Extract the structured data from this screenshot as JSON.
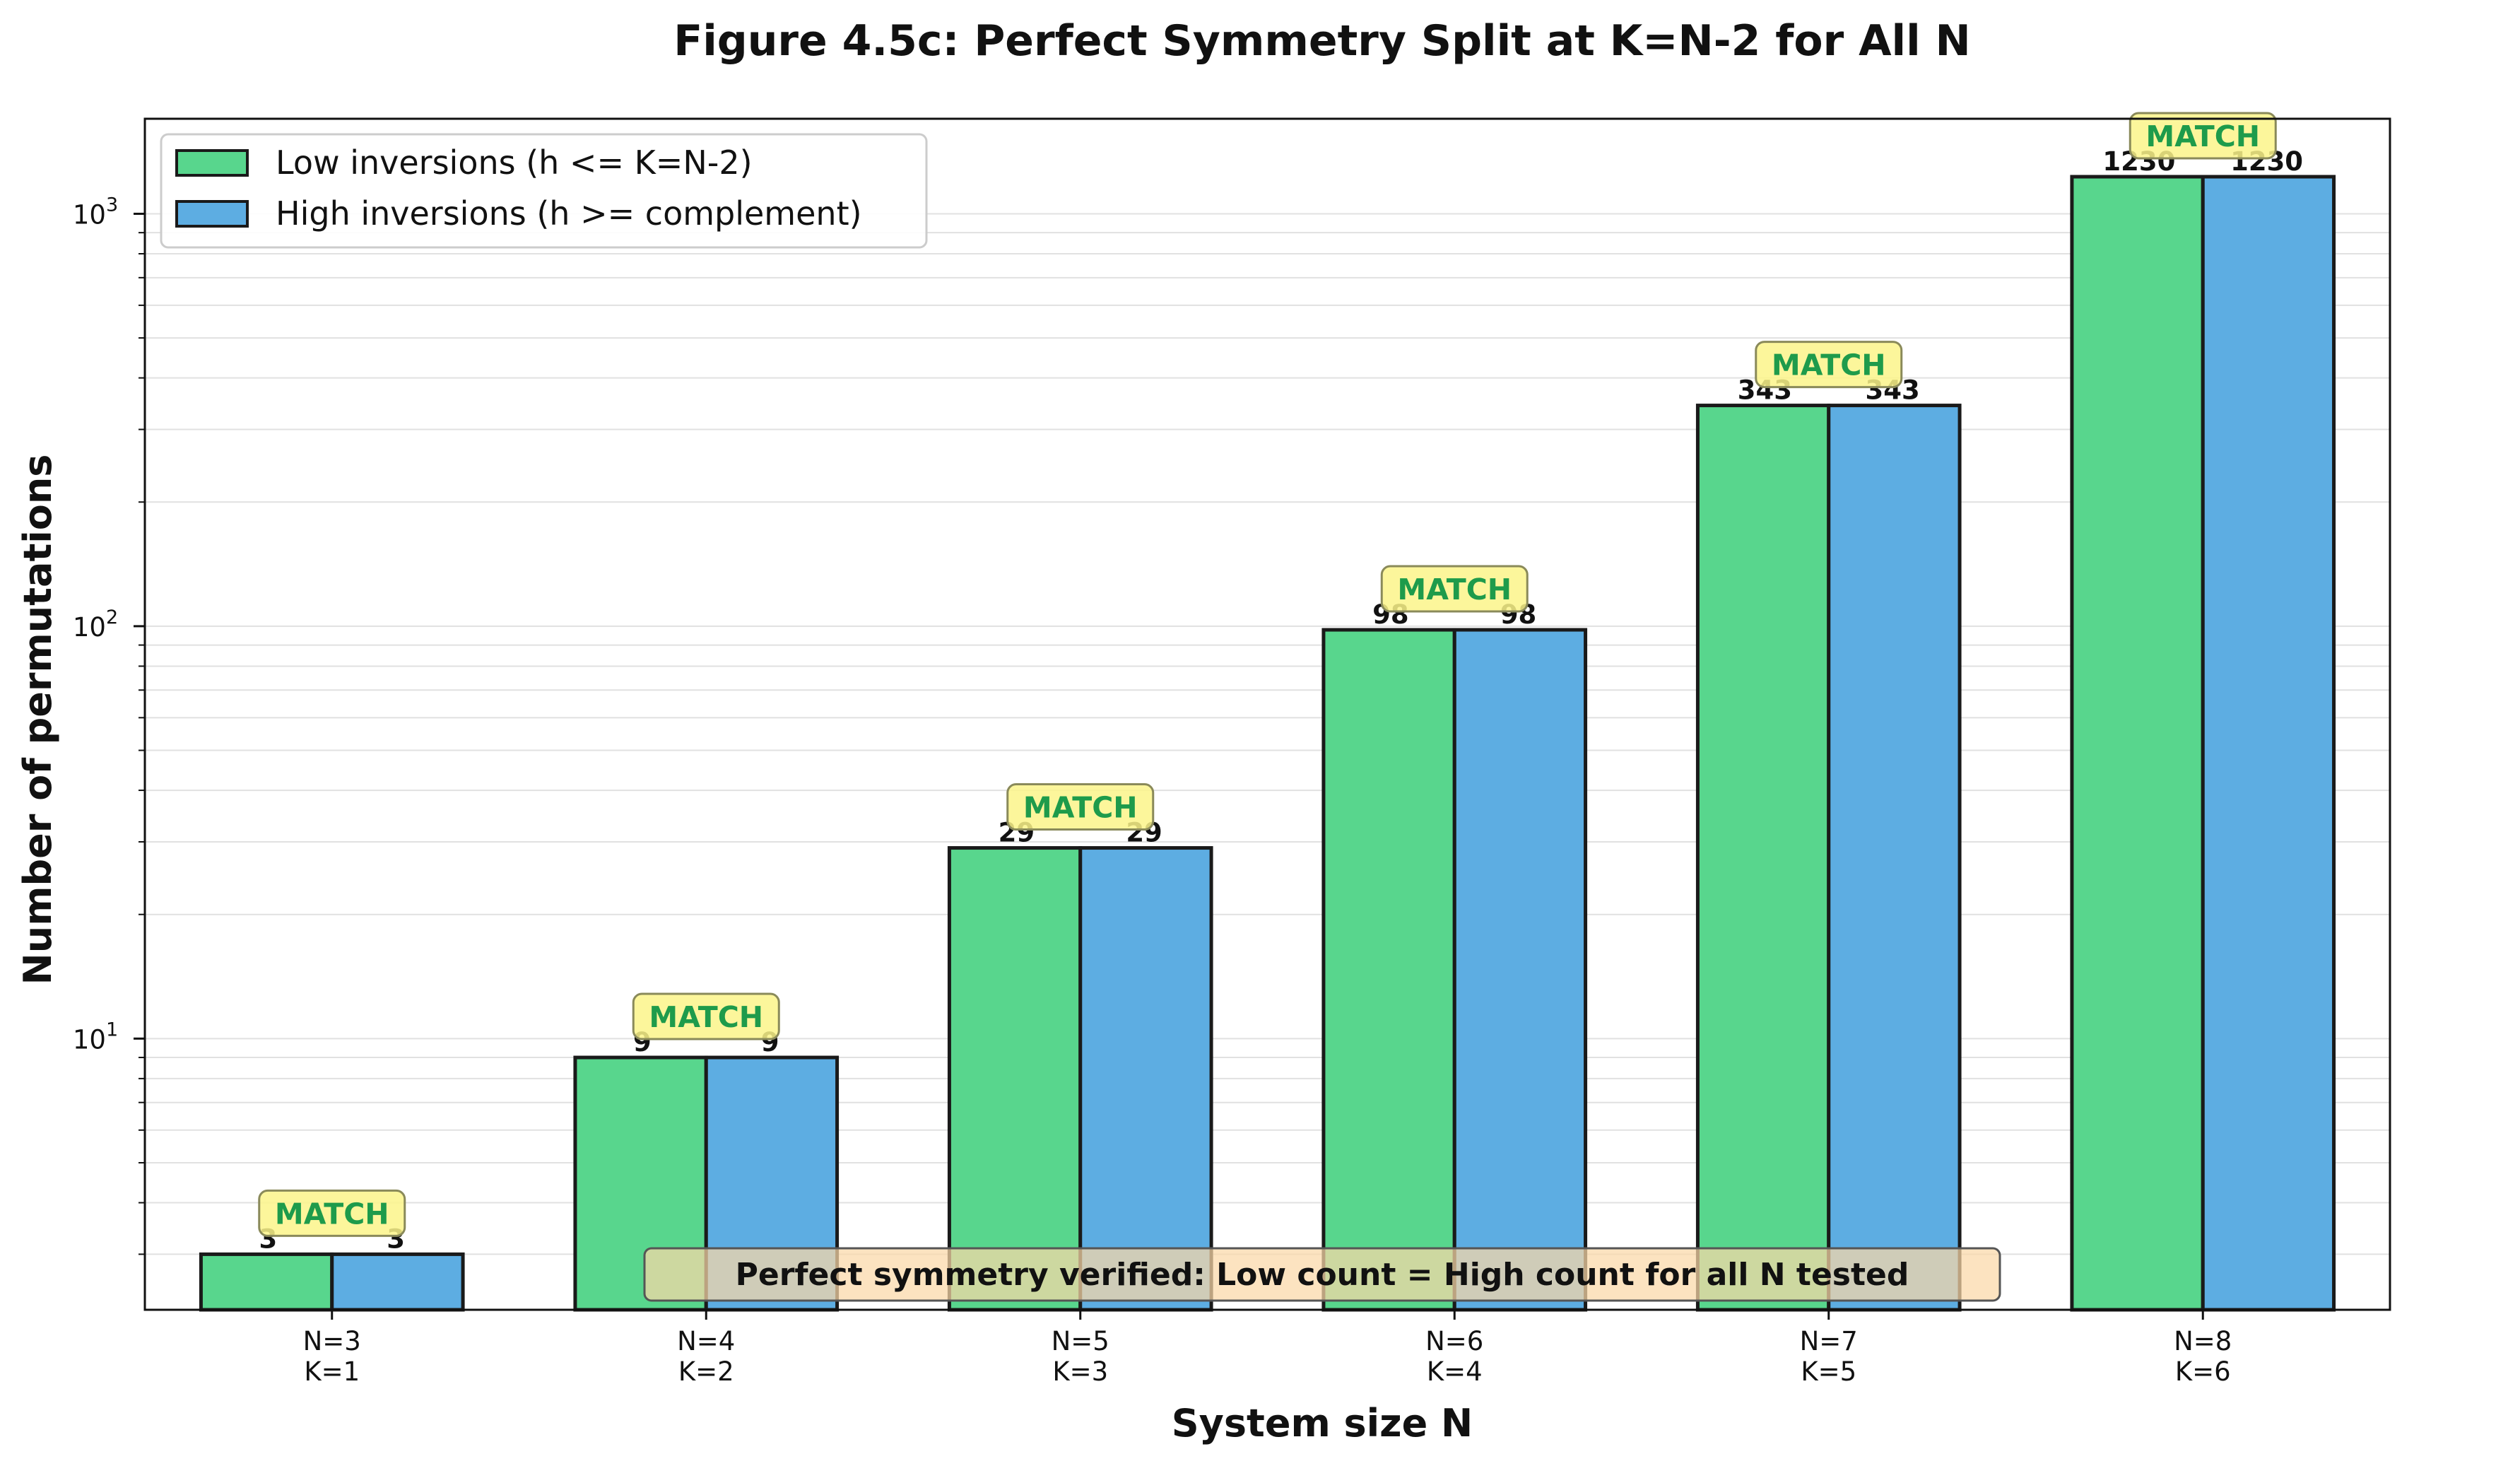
{
  "chart_data": {
    "type": "bar",
    "title": "Figure 4.5c: Perfect Symmetry Split at K=N-2 for All N",
    "xlabel": "System size N",
    "ylabel": "Number of permutations",
    "yscale": "log",
    "ylim": [
      2.2,
      1700
    ],
    "yticks": [
      {
        "value": 10,
        "base": "10",
        "exp": "1"
      },
      {
        "value": 100,
        "base": "10",
        "exp": "2"
      },
      {
        "value": 1000,
        "base": "10",
        "exp": "3"
      }
    ],
    "categories": [
      {
        "line1": "N=3",
        "line2": "K=1"
      },
      {
        "line1": "N=4",
        "line2": "K=2"
      },
      {
        "line1": "N=5",
        "line2": "K=3"
      },
      {
        "line1": "N=6",
        "line2": "K=4"
      },
      {
        "line1": "N=7",
        "line2": "K=5"
      },
      {
        "line1": "N=8",
        "line2": "K=6"
      }
    ],
    "series": [
      {
        "name": "Low inversions (h <= K=N-2)",
        "color": "#58d68d",
        "values": [
          3,
          9,
          29,
          98,
          343,
          1230
        ]
      },
      {
        "name": "High inversions (h >= complement)",
        "color": "#5dade2",
        "values": [
          3,
          9,
          29,
          98,
          343,
          1230
        ]
      }
    ],
    "match_label": "MATCH",
    "match_color": "#1e9b4b",
    "match_box_color": "#fbf58a",
    "legend_position": "top-left",
    "grid": "y-minor",
    "annotation": "Perfect symmetry verified: Low count = High count for all N tested",
    "annotation_box_color": "#fbd8a8"
  }
}
